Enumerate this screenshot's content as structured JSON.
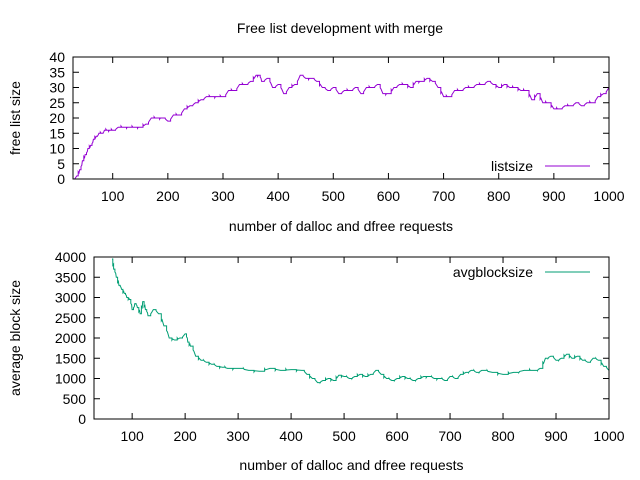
{
  "title": "Free list development with merge",
  "chart_data": [
    {
      "type": "line",
      "xlabel": "number of dalloc and dfree requests",
      "ylabel": "free list size",
      "xlim": [
        28,
        1000
      ],
      "ylim": [
        0,
        40
      ],
      "xticks": [
        100,
        200,
        300,
        400,
        500,
        600,
        700,
        800,
        900,
        1000
      ],
      "yticks": [
        0,
        5,
        10,
        15,
        20,
        25,
        30,
        35,
        40
      ],
      "xtick_labels": [
        "100",
        "200",
        "300",
        "400",
        "500",
        "600",
        "700",
        "800",
        "900",
        "1000"
      ],
      "ytick_labels": [
        "0",
        "5",
        "10",
        "15",
        "20",
        "25",
        "30",
        "35",
        "40"
      ],
      "legend": "bottom-right",
      "series": [
        {
          "name": "listsize",
          "color": "#9400d3",
          "x": [
            28,
            35,
            40,
            45,
            50,
            55,
            60,
            65,
            70,
            75,
            80,
            85,
            90,
            95,
            100,
            110,
            120,
            130,
            140,
            150,
            160,
            170,
            180,
            190,
            200,
            210,
            220,
            230,
            240,
            250,
            260,
            270,
            280,
            290,
            300,
            310,
            320,
            330,
            340,
            350,
            360,
            365,
            370,
            380,
            390,
            400,
            410,
            420,
            430,
            440,
            450,
            460,
            470,
            480,
            490,
            500,
            510,
            520,
            530,
            540,
            550,
            560,
            570,
            580,
            590,
            600,
            610,
            620,
            630,
            640,
            650,
            660,
            670,
            680,
            690,
            700,
            710,
            720,
            730,
            740,
            750,
            760,
            770,
            780,
            790,
            800,
            810,
            820,
            830,
            840,
            850,
            860,
            870,
            880,
            890,
            900,
            910,
            920,
            930,
            940,
            950,
            960,
            970,
            980,
            990,
            1000
          ],
          "values": [
            0,
            1,
            3,
            6,
            8,
            10,
            11,
            13,
            14,
            15,
            15,
            16,
            16,
            16,
            16,
            17,
            17,
            17,
            17,
            17,
            18,
            20,
            20,
            20,
            19,
            21,
            21,
            23,
            24,
            25,
            26,
            27,
            27,
            27,
            27,
            29,
            29,
            31,
            31,
            32,
            34,
            34,
            32,
            33,
            30,
            31,
            28,
            30,
            31,
            34,
            33,
            33,
            32,
            30,
            29,
            30,
            28,
            29,
            29,
            30,
            28,
            30,
            30,
            31,
            28,
            28,
            30,
            31,
            31,
            30,
            32,
            32,
            33,
            32,
            30,
            27,
            27,
            29,
            29,
            30,
            30,
            31,
            31,
            32,
            31,
            30,
            31,
            30,
            30,
            29,
            29,
            26,
            28,
            25,
            25,
            23,
            23,
            24,
            24,
            25,
            24,
            25,
            25,
            27,
            28,
            30
          ]
        }
      ]
    },
    {
      "type": "line",
      "xlabel": "number of dalloc and dfree requests",
      "ylabel": "average block size",
      "xlim": [
        28,
        1000
      ],
      "ylim": [
        0,
        4000
      ],
      "xticks": [
        100,
        200,
        300,
        400,
        500,
        600,
        700,
        800,
        900,
        1000
      ],
      "yticks": [
        0,
        500,
        1000,
        1500,
        2000,
        2500,
        3000,
        3500,
        4000
      ],
      "xtick_labels": [
        "100",
        "200",
        "300",
        "400",
        "500",
        "600",
        "700",
        "800",
        "900",
        "1000"
      ],
      "ytick_labels": [
        "0",
        "500",
        "1000",
        "1500",
        "2000",
        "2500",
        "3000",
        "3500",
        "4000"
      ],
      "legend": "top-right",
      "series": [
        {
          "name": "avgblocksize",
          "color": "#009e73",
          "x": [
            62,
            65,
            70,
            75,
            80,
            85,
            90,
            95,
            100,
            105,
            110,
            115,
            120,
            125,
            130,
            140,
            150,
            160,
            170,
            180,
            190,
            200,
            205,
            210,
            220,
            230,
            240,
            250,
            260,
            270,
            280,
            300,
            320,
            340,
            360,
            380,
            400,
            420,
            430,
            440,
            450,
            460,
            470,
            480,
            490,
            500,
            510,
            520,
            530,
            540,
            550,
            560,
            570,
            580,
            590,
            600,
            610,
            620,
            630,
            640,
            650,
            660,
            670,
            680,
            690,
            700,
            710,
            720,
            730,
            740,
            750,
            760,
            780,
            800,
            820,
            840,
            860,
            870,
            880,
            890,
            900,
            910,
            920,
            930,
            940,
            950,
            960,
            970,
            980,
            990,
            1000
          ],
          "values": [
            3950,
            3700,
            3500,
            3300,
            3200,
            3100,
            3000,
            2950,
            2700,
            2850,
            2750,
            2600,
            2900,
            2700,
            2550,
            2700,
            2600,
            2300,
            2000,
            1950,
            2000,
            2100,
            1900,
            1800,
            1550,
            1450,
            1400,
            1350,
            1300,
            1280,
            1250,
            1250,
            1200,
            1180,
            1250,
            1200,
            1220,
            1200,
            1100,
            1000,
            900,
            950,
            1000,
            950,
            1080,
            1050,
            1000,
            1050,
            1100,
            1050,
            1100,
            1200,
            1100,
            1000,
            950,
            1000,
            1050,
            1000,
            950,
            1000,
            1050,
            1050,
            1000,
            1000,
            950,
            1050,
            1000,
            1100,
            1150,
            1200,
            1150,
            1200,
            1150,
            1100,
            1150,
            1200,
            1200,
            1250,
            1500,
            1550,
            1450,
            1500,
            1600,
            1500,
            1550,
            1450,
            1400,
            1500,
            1450,
            1300,
            1200
          ]
        }
      ]
    }
  ]
}
